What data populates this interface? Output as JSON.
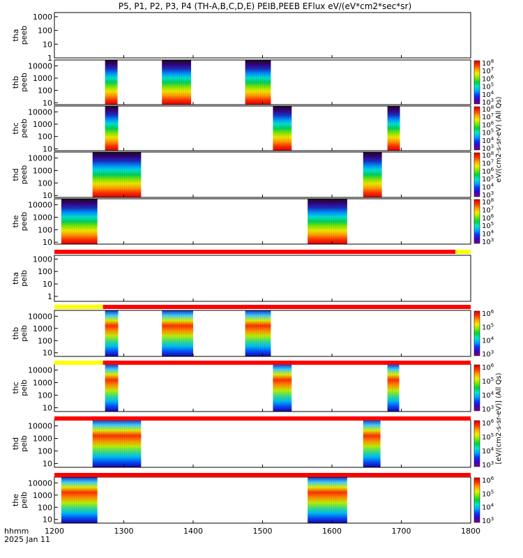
{
  "title": "P5, P1, P2, P3, P4 (TH-A,B,C,D,E) PEIB,PEEB EFlux eV/(eV*cm2*sec*sr)",
  "footer": {
    "unit": "hhmm",
    "date": "2025 Jan 11"
  },
  "colorbar_labels": {
    "peeb": "eV/(cm2-s-sr-eV) (All Qs)",
    "peib": "[eV/(cm2-s-sr-eV)] (All Qs)"
  },
  "colorscale": [
    "#7a007a",
    "#3c00c8",
    "#0038ff",
    "#00a8ff",
    "#00e8c8",
    "#00d040",
    "#80e800",
    "#f0f000",
    "#ffa000",
    "#ff3000",
    "#d80000"
  ],
  "chart_data": {
    "type": "heatmap",
    "xlabel": "hhmm",
    "x_ticks": [
      "1200",
      "1300",
      "1400",
      "1500",
      "1600",
      "1700",
      "1800"
    ],
    "xlim": [
      1200,
      1800
    ],
    "y_ticks_peeb": [
      "10",
      "100",
      "1000",
      "10000"
    ],
    "y_ticks_empty": [
      "1",
      "10",
      "100",
      "1000"
    ],
    "panels": [
      {
        "ylabel": "tha peeb",
        "ylim": [
          1,
          2000
        ],
        "colorbar": false,
        "blocks": []
      },
      {
        "ylabel": "thb peeb",
        "ylim": [
          7,
          30000
        ],
        "colorbar": true,
        "cb_ticks": [
          "10^3",
          "10^4",
          "10^5",
          "10^6",
          "10^7",
          "10^8"
        ],
        "blocks": [
          [
            1273,
            1291
          ],
          [
            1355,
            1397
          ],
          [
            1475,
            1512
          ]
        ]
      },
      {
        "ylabel": "thc peeb",
        "ylim": [
          7,
          30000
        ],
        "colorbar": true,
        "cb_ticks": [
          "10^3",
          "10^4",
          "10^5",
          "10^6",
          "10^7",
          "10^8"
        ],
        "blocks": [
          [
            1273,
            1292
          ],
          [
            1515,
            1542
          ],
          [
            1680,
            1698
          ]
        ]
      },
      {
        "ylabel": "thd peeb",
        "ylim": [
          7,
          30000
        ],
        "colorbar": true,
        "cb_ticks": [
          "10^3",
          "10^4",
          "10^5",
          "10^6",
          "10^7",
          "10^8"
        ],
        "blocks": [
          [
            1255,
            1325
          ],
          [
            1645,
            1672
          ]
        ]
      },
      {
        "ylabel": "the peeb",
        "ylim": [
          7,
          30000
        ],
        "colorbar": true,
        "cb_ticks": [
          "10^3",
          "10^4",
          "10^5",
          "10^6",
          "10^7",
          "10^8"
        ],
        "blocks": [
          [
            1210,
            1262
          ],
          [
            1565,
            1622
          ]
        ]
      },
      {
        "ylabel": "tha peib",
        "ylim": [
          0.4,
          2000
        ],
        "colorbar": false,
        "blocks": []
      },
      {
        "ylabel": "thb peib",
        "ylim": [
          5,
          30000
        ],
        "colorbar": true,
        "cb_ticks": [
          "10^3",
          "10^4",
          "10^5",
          "10^6"
        ],
        "blocks": [
          [
            1273,
            1292
          ],
          [
            1355,
            1400
          ],
          [
            1475,
            1512
          ]
        ]
      },
      {
        "ylabel": "thc peib",
        "ylim": [
          5,
          30000
        ],
        "colorbar": true,
        "cb_ticks": [
          "10^3",
          "10^4",
          "10^5",
          "10^6"
        ],
        "blocks": [
          [
            1273,
            1292
          ],
          [
            1515,
            1542
          ],
          [
            1680,
            1697
          ]
        ]
      },
      {
        "ylabel": "thd peib",
        "ylim": [
          5,
          30000
        ],
        "colorbar": true,
        "cb_ticks": [
          "10^3",
          "10^4",
          "10^5",
          "10^6"
        ],
        "blocks": [
          [
            1255,
            1325
          ],
          [
            1645,
            1670
          ]
        ]
      },
      {
        "ylabel": "the peib",
        "ylim": [
          5,
          30000
        ],
        "colorbar": true,
        "cb_ticks": [
          "10^3",
          "10^4",
          "10^5",
          "10^6"
        ],
        "blocks": [
          [
            1210,
            1262
          ],
          [
            1565,
            1622
          ]
        ]
      }
    ],
    "status_bars": [
      {
        "segments": [
          {
            "from": 1200,
            "to": 1778,
            "color": "#ff0000"
          },
          {
            "from": 1778,
            "to": 1800,
            "color": "#ffff00"
          }
        ]
      },
      {
        "segments": [
          {
            "from": 1200,
            "to": 1270,
            "color": "#ffff00"
          },
          {
            "from": 1270,
            "to": 1800,
            "color": "#ff0000"
          }
        ]
      },
      {
        "segments": [
          {
            "from": 1200,
            "to": 1270,
            "color": "#ffff00"
          },
          {
            "from": 1270,
            "to": 1800,
            "color": "#ff0000"
          }
        ]
      },
      {
        "segments": [
          {
            "from": 1200,
            "to": 1800,
            "color": "#ff0000"
          }
        ]
      },
      {
        "segments": [
          {
            "from": 1200,
            "to": 1800,
            "color": "#ff0000"
          }
        ]
      }
    ]
  }
}
